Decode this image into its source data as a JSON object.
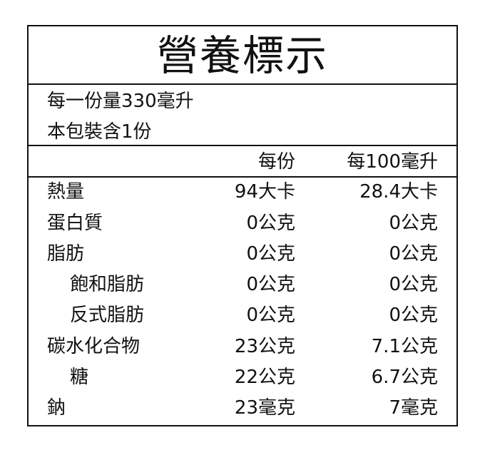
{
  "title": "營養標示",
  "serving": {
    "size": "每一份量330毫升",
    "per_pack": "本包裝含1份"
  },
  "columns": {
    "per_serving": "每份",
    "per_100ml": "每100毫升"
  },
  "rows": [
    {
      "label": "熱量",
      "per_serving": "94大卡",
      "per_100ml": "28.4大卡"
    },
    {
      "label": "蛋白質",
      "per_serving": "0公克",
      "per_100ml": "0公克"
    },
    {
      "label": "脂肪",
      "per_serving": "0公克",
      "per_100ml": "0公克"
    },
    {
      "label": "飽和脂肪",
      "per_serving": "0公克",
      "per_100ml": "0公克"
    },
    {
      "label": "反式脂肪",
      "per_serving": "0公克",
      "per_100ml": "0公克"
    },
    {
      "label": "碳水化合物",
      "per_serving": "23公克",
      "per_100ml": "7.1公克"
    },
    {
      "label": "糖",
      "per_serving": "22公克",
      "per_100ml": "6.7公克"
    },
    {
      "label": "鈉",
      "per_serving": "23毫克",
      "per_100ml": "7毫克"
    }
  ]
}
